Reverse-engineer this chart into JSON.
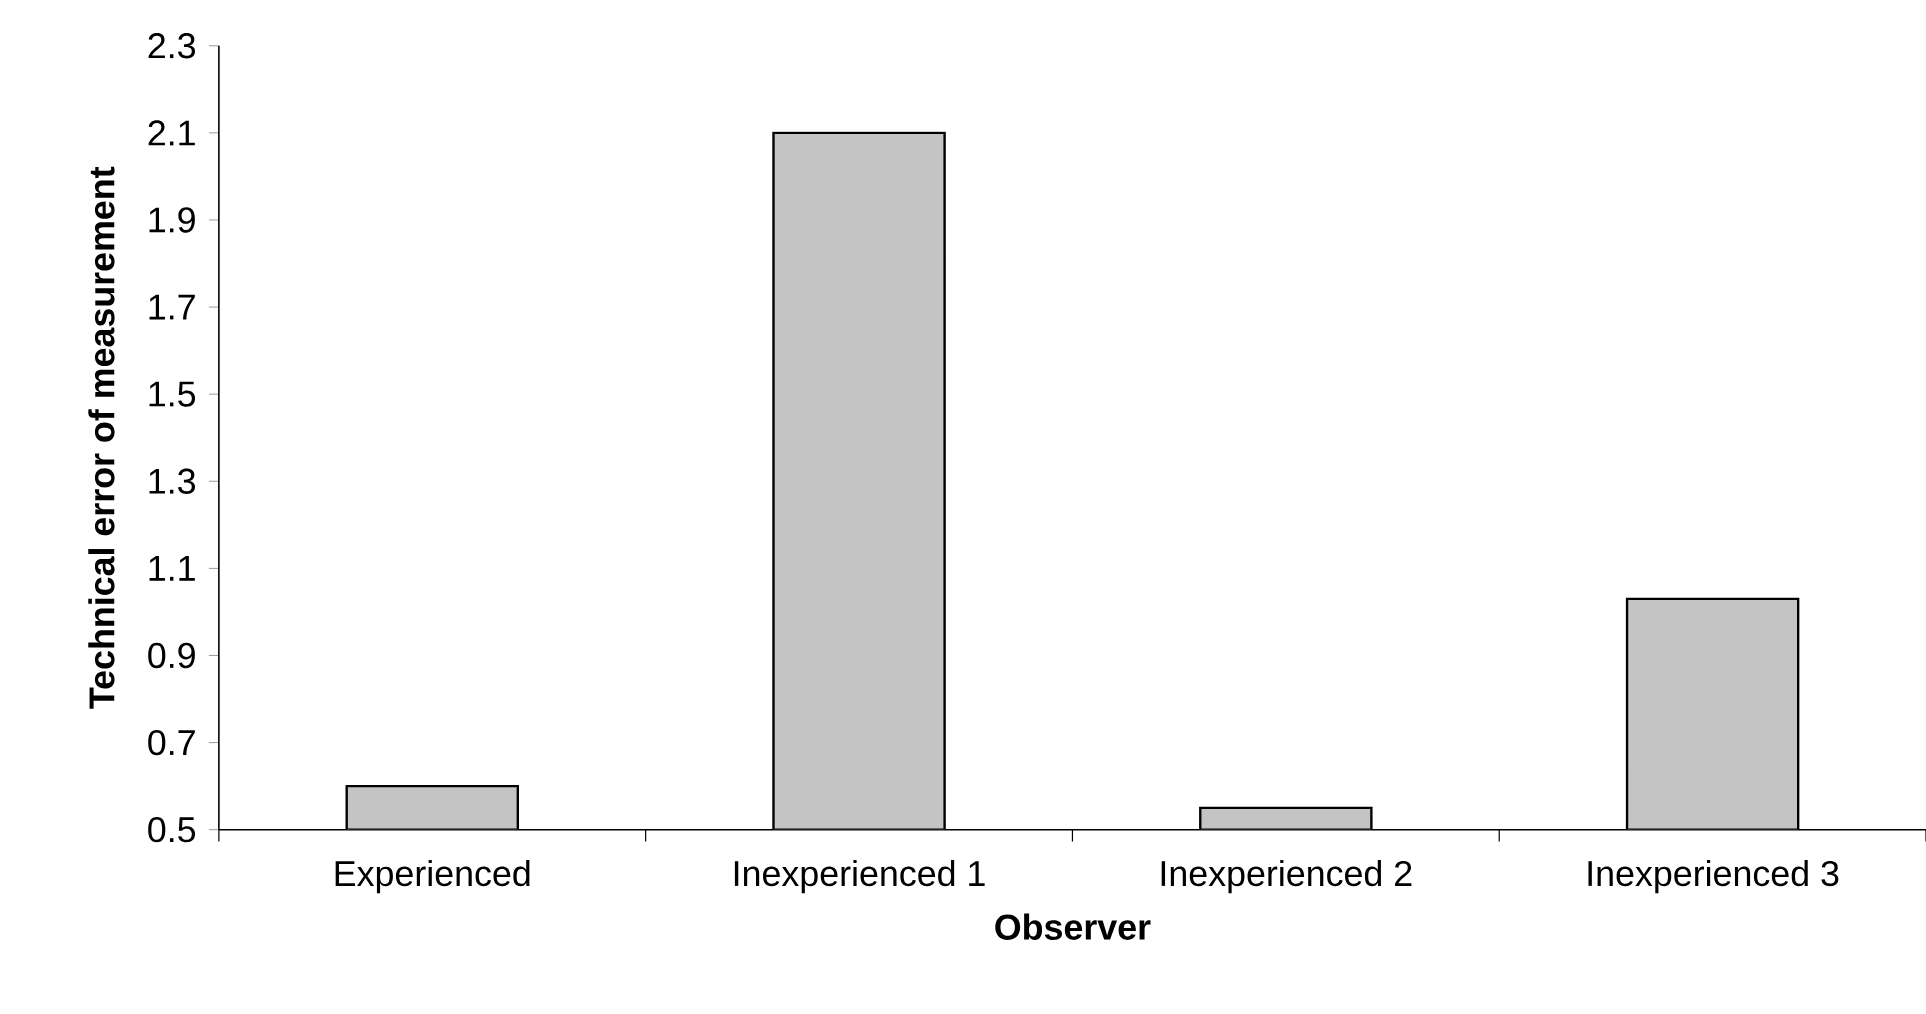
{
  "chart_data": {
    "type": "bar",
    "xlabel": "Observer",
    "ylabel": "Technical error of measurement",
    "categories": [
      "Experienced",
      "Inexperienced 1",
      "Inexperienced 2",
      "Inexperienced 3"
    ],
    "values": [
      0.6,
      2.1,
      0.55,
      1.03
    ],
    "color": "#c4c4c4",
    "ylim": [
      0.5,
      2.3
    ],
    "yticks": [
      0.5,
      0.7,
      0.9,
      1.1,
      1.3,
      1.5,
      1.7,
      1.9,
      2.1,
      2.3
    ],
    "grid": false
  }
}
